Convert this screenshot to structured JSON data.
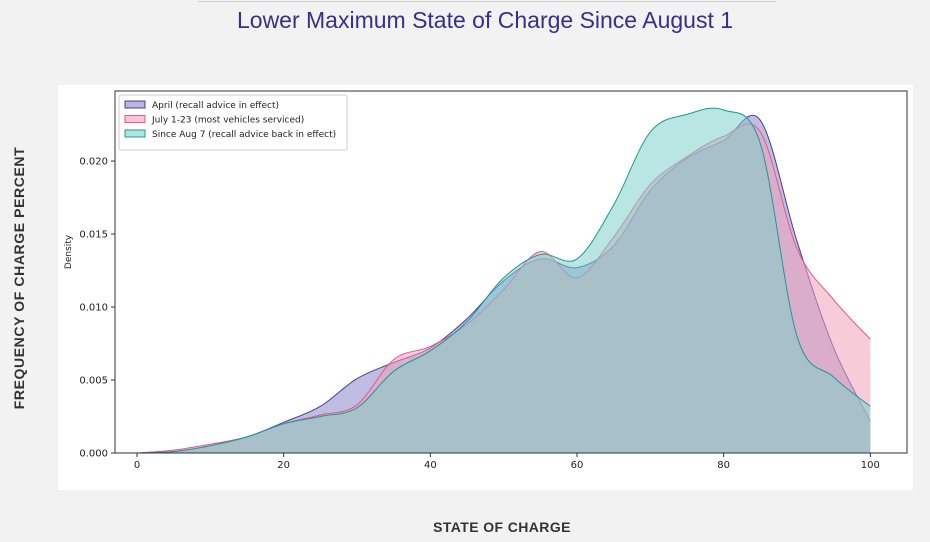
{
  "page": {
    "title": "Lower Maximum State of Charge Since August 1",
    "y_axis_title": "FREQUENCY OF CHARGE PERCENT",
    "x_axis_title": "STATE OF CHARGE"
  },
  "chart_data": {
    "type": "area",
    "ylabel": "Density",
    "xlim": [
      -3,
      105
    ],
    "ylim": [
      0,
      0.0248
    ],
    "xticks": [
      0,
      20,
      40,
      60,
      80,
      100
    ],
    "yticks": [
      0.0,
      0.005,
      0.01,
      0.015,
      0.02
    ],
    "ytick_labels": [
      "0.000",
      "0.005",
      "0.010",
      "0.015",
      "0.020"
    ],
    "grid": false,
    "legend_position": "top-left",
    "x": [
      0,
      5,
      10,
      15,
      20,
      25,
      30,
      35,
      40,
      45,
      50,
      55,
      60,
      65,
      70,
      75,
      80,
      85,
      90,
      95,
      100
    ],
    "series": [
      {
        "name": "April (recall advice in effect)",
        "color": "#8b87c9",
        "edge": "#4b3d9a",
        "values": [
          0.0,
          0.0001,
          0.0005,
          0.0011,
          0.0021,
          0.0032,
          0.0051,
          0.0062,
          0.0072,
          0.0092,
          0.0118,
          0.0133,
          0.0127,
          0.0142,
          0.018,
          0.0202,
          0.0214,
          0.0228,
          0.0145,
          0.0072,
          0.0022
        ]
      },
      {
        "name": "July 1-23 (most vehicles serviced)",
        "color": "#f0a0b8",
        "edge": "#e8558a",
        "values": [
          0.0,
          0.0002,
          0.0006,
          0.0011,
          0.002,
          0.0026,
          0.0033,
          0.0064,
          0.0073,
          0.0088,
          0.0112,
          0.0138,
          0.012,
          0.0148,
          0.0184,
          0.0203,
          0.0217,
          0.022,
          0.014,
          0.0105,
          0.0078
        ]
      },
      {
        "name": "Since Aug 7 (recall advice back in effect)",
        "color": "#80cfcb",
        "edge": "#1a9a96",
        "values": [
          0.0,
          0.0001,
          0.0005,
          0.0011,
          0.002,
          0.0025,
          0.0031,
          0.0056,
          0.007,
          0.009,
          0.012,
          0.0136,
          0.0133,
          0.017,
          0.022,
          0.0232,
          0.0235,
          0.0212,
          0.008,
          0.0052,
          0.0032
        ]
      }
    ]
  }
}
